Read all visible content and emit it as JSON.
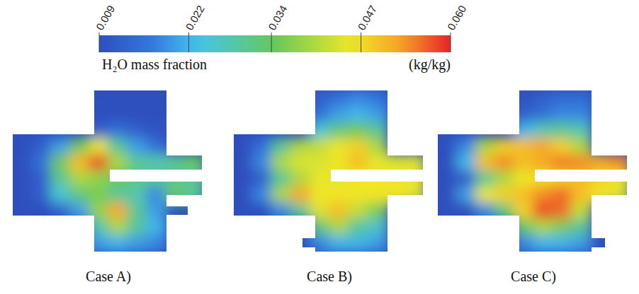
{
  "chart_data": {
    "type": "heatmap",
    "colorbar": {
      "title": "H₂O mass fraction",
      "unit": "(kg/kg)",
      "range": [
        0.009,
        0.06
      ],
      "ticks": [
        0.009,
        0.022,
        0.034,
        0.047,
        {
          "value": 0.06,
          "label": "0.060"
        }
      ]
    },
    "panels": [
      {
        "title": "Case A)",
        "cells": [
          [
            null,
            null,
            null,
            null,
            0.009,
            0.009,
            0.009,
            0.009,
            null,
            null
          ],
          [
            null,
            null,
            null,
            null,
            0.009,
            0.009,
            0.009,
            0.009,
            null,
            null
          ],
          [
            null,
            null,
            null,
            null,
            0.012,
            0.015,
            0.012,
            0.01,
            null,
            null
          ],
          [
            0.009,
            0.012,
            0.02,
            0.035,
            0.045,
            0.03,
            0.02,
            0.015,
            null,
            null
          ],
          [
            0.009,
            0.015,
            0.035,
            0.05,
            0.058,
            0.04,
            0.03,
            0.028,
            0.03,
            0.034
          ],
          [
            0.009,
            0.012,
            0.03,
            0.04,
            0.038,
            0.034,
            0.032,
            0.03,
            0.03,
            0.03
          ],
          [
            0.009,
            0.012,
            0.025,
            0.032,
            0.036,
            0.03,
            0.028,
            0.018,
            0.034,
            0.03
          ],
          [
            0.009,
            0.009,
            0.012,
            0.02,
            0.038,
            0.052,
            0.03,
            0.02,
            null,
            null
          ],
          [
            null,
            null,
            null,
            null,
            0.028,
            0.04,
            0.03,
            0.022,
            null,
            null
          ],
          [
            null,
            null,
            null,
            null,
            0.02,
            0.022,
            0.02,
            0.018,
            null,
            null
          ]
        ]
      },
      {
        "title": "Case B)",
        "cells": [
          [
            null,
            null,
            null,
            null,
            0.012,
            0.015,
            0.018,
            0.016,
            null,
            null
          ],
          [
            null,
            null,
            null,
            null,
            0.015,
            0.02,
            0.022,
            0.02,
            null,
            null
          ],
          [
            null,
            null,
            null,
            null,
            0.025,
            0.032,
            0.035,
            0.03,
            null,
            null
          ],
          [
            0.009,
            0.015,
            0.03,
            0.04,
            0.042,
            0.045,
            0.048,
            0.04,
            null,
            null
          ],
          [
            0.009,
            0.018,
            0.04,
            0.044,
            0.044,
            0.046,
            0.05,
            0.045,
            0.044,
            0.044
          ],
          [
            0.009,
            0.012,
            0.03,
            0.04,
            0.045,
            0.045,
            0.046,
            0.046,
            0.046,
            0.046
          ],
          [
            0.009,
            0.018,
            0.04,
            0.052,
            0.046,
            0.046,
            0.046,
            0.046,
            0.046,
            0.044
          ],
          [
            0.009,
            0.009,
            0.018,
            0.03,
            0.044,
            0.05,
            0.042,
            0.036,
            null,
            null
          ],
          [
            null,
            null,
            null,
            null,
            0.032,
            0.04,
            0.03,
            0.026,
            null,
            null
          ],
          [
            null,
            null,
            null,
            null,
            0.018,
            0.022,
            0.022,
            0.02,
            null,
            null
          ]
        ]
      },
      {
        "title": "Case C)",
        "cells": [
          [
            null,
            null,
            null,
            null,
            0.01,
            0.012,
            0.014,
            0.014,
            null,
            null
          ],
          [
            null,
            null,
            null,
            null,
            0.012,
            0.015,
            0.018,
            0.018,
            null,
            null
          ],
          [
            null,
            null,
            null,
            null,
            0.022,
            0.028,
            0.03,
            0.028,
            null,
            null
          ],
          [
            0.009,
            0.018,
            0.04,
            0.048,
            0.05,
            0.052,
            0.048,
            0.04,
            null,
            null
          ],
          [
            0.009,
            0.022,
            0.05,
            0.054,
            0.05,
            0.052,
            0.055,
            0.054,
            0.052,
            0.054
          ],
          [
            0.009,
            0.012,
            0.03,
            0.04,
            0.046,
            0.047,
            0.048,
            0.05,
            0.048,
            0.046
          ],
          [
            0.009,
            0.02,
            0.045,
            0.048,
            0.05,
            0.054,
            0.056,
            0.05,
            0.046,
            0.044
          ],
          [
            0.009,
            0.009,
            0.018,
            0.032,
            0.048,
            0.058,
            0.056,
            0.042,
            null,
            null
          ],
          [
            null,
            null,
            null,
            null,
            0.034,
            0.04,
            0.036,
            0.03,
            null,
            null
          ],
          [
            null,
            null,
            null,
            null,
            0.018,
            0.022,
            0.022,
            0.02,
            null,
            null
          ]
        ]
      }
    ]
  }
}
